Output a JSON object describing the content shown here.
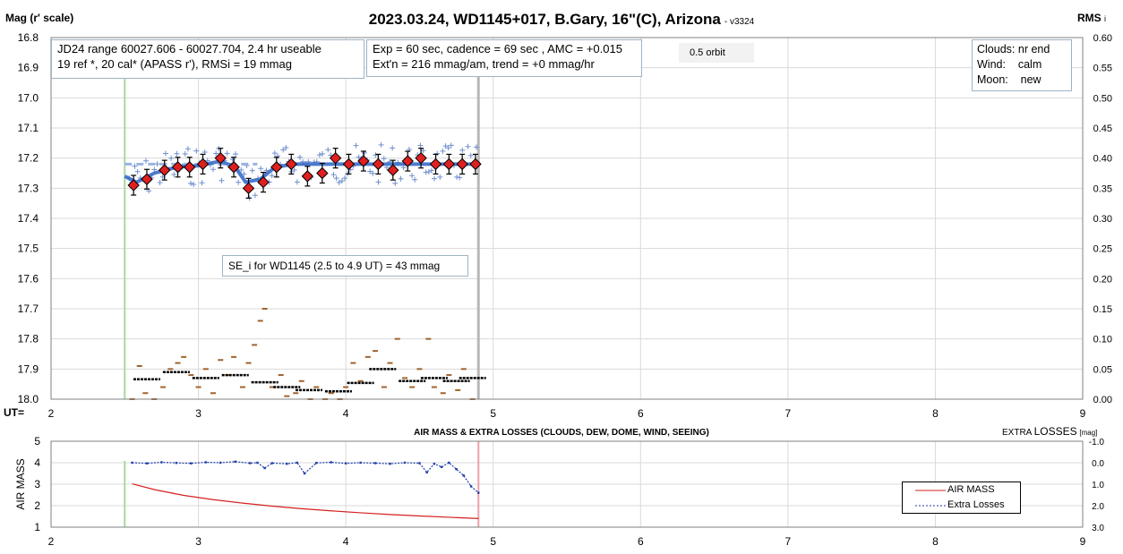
{
  "header": {
    "title": "2023.03.24, WD1145+017, B.Gary, 16\"(C), Arizona",
    "version": "- v3324",
    "left_axis_title": "Mag (r' scale)",
    "right_axis_title": "RMS",
    "right_axis_sub": "i",
    "ut_label": "UT="
  },
  "info": {
    "box1_line1": "JD24 range 60027.606 - 60027.704, 2.4 hr useable",
    "box1_line2": "19 ref *, 20 cal*  (APASS r'), RMSi = 19 mmag",
    "box2_line1": "Exp = 60 sec, cadence = 69 sec , AMC = +0.015",
    "box2_line2": "Ext'n = 216 mmag/am, trend = +0 mmag/hr",
    "orbit_label": "0.5 orbit",
    "se_label": "SE_i for WD1145 (2.5 to 4.9 UT) = 43 mmag",
    "conditions": [
      {
        "label": "Clouds:",
        "value": "nr end"
      },
      {
        "label": "Wind:",
        "value": "calm"
      },
      {
        "label": "Moon:",
        "value": "new"
      }
    ]
  },
  "lower": {
    "title": "AIR MASS & EXTRA LOSSES (CLOUDS, DEW, DOME, WIND, SEEING)",
    "right_title_pre": "EXTRA",
    "right_title_big": "LOSSES",
    "right_title_unit": "[mag]",
    "ylabel": "AIR MASS",
    "legend": {
      "airmass": "AIR MASS",
      "losses": "Extra Losses"
    }
  },
  "colors": {
    "binned_marker": "#e02020",
    "fit_line": "#3a6cc8",
    "raw_points": "#6f8fcf",
    "rms_binned": "#000000",
    "rms_raw": "#a0622d",
    "airmass_line": "#d42020",
    "losses_line": "#1f3fa8",
    "start_marker": "#a8d89a",
    "end_marker": "#b8b8b8",
    "end_marker_lower": "#f0a0a8"
  },
  "chart_data": [
    {
      "type": "scatter",
      "name": "light curve",
      "xlabel": "UT",
      "ylabel": "Mag (r' scale)",
      "xlim": [
        2,
        9
      ],
      "ylim": [
        16.8,
        18.0
      ],
      "y_inverted": true,
      "x_ticks": [
        2,
        3,
        4,
        5,
        6,
        7,
        8,
        9
      ],
      "y_ticks": [
        16.8,
        16.9,
        17.0,
        17.1,
        17.2,
        17.3,
        17.4,
        17.5,
        17.6,
        17.7,
        17.8,
        17.9,
        18.0
      ],
      "y_tick_labels": [
        "16.8",
        "16.9",
        "17.0",
        "17.1",
        "17.2",
        "17.3",
        "17.4",
        "17.5",
        "17.6",
        "17.7",
        "17.8",
        "17.9",
        "18.0"
      ],
      "right_axis": {
        "label": "RMS",
        "range": [
          0.0,
          0.6
        ],
        "ticks": [
          "0.60",
          "0.55",
          "0.50",
          "0.45",
          "0.40",
          "0.35",
          "0.30",
          "0.25",
          "0.20",
          "0.15",
          "0.10",
          "0.05",
          "0.00"
        ]
      },
      "grid": true,
      "vertical_markers": {
        "start_ut": 2.5,
        "end_ut": 4.9
      },
      "binned": {
        "x": [
          2.56,
          2.65,
          2.77,
          2.86,
          2.94,
          3.03,
          3.15,
          3.24,
          3.34,
          3.44,
          3.53,
          3.63,
          3.74,
          3.84,
          3.93,
          4.02,
          4.12,
          4.22,
          4.32,
          4.42,
          4.51,
          4.61,
          4.7,
          4.79,
          4.88
        ],
        "y": [
          17.29,
          17.27,
          17.24,
          17.23,
          17.23,
          17.22,
          17.2,
          17.23,
          17.3,
          17.28,
          17.23,
          17.22,
          17.26,
          17.25,
          17.2,
          17.22,
          17.21,
          17.22,
          17.24,
          17.21,
          17.2,
          17.22,
          17.22,
          17.22,
          17.22
        ]
      },
      "fit_line": {
        "x": [
          2.5,
          2.58,
          2.7,
          2.85,
          3.0,
          3.15,
          3.25,
          3.32,
          3.42,
          3.52,
          3.65,
          3.8,
          4.0,
          4.2,
          4.4,
          4.6,
          4.9
        ],
        "y": [
          17.26,
          17.28,
          17.25,
          17.23,
          17.225,
          17.21,
          17.23,
          17.28,
          17.27,
          17.23,
          17.22,
          17.22,
          17.22,
          17.22,
          17.22,
          17.22,
          17.22
        ]
      },
      "trend_dashed": {
        "x": [
          2.5,
          3.4
        ],
        "y": [
          17.22,
          17.22
        ]
      },
      "rms_binned": {
        "x": [
          2.65,
          2.85,
          3.05,
          3.25,
          3.45,
          3.6,
          3.75,
          3.95,
          4.1,
          4.25,
          4.45,
          4.6,
          4.75,
          4.86
        ],
        "y": [
          0.033,
          0.045,
          0.035,
          0.04,
          0.028,
          0.02,
          0.015,
          0.013,
          0.027,
          0.05,
          0.03,
          0.035,
          0.03,
          0.035
        ]
      },
      "rms_raw": {
        "x": [
          2.55,
          2.6,
          2.64,
          2.7,
          2.76,
          2.81,
          2.86,
          2.9,
          2.95,
          3.0,
          3.05,
          3.1,
          3.15,
          3.2,
          3.24,
          3.3,
          3.34,
          3.38,
          3.42,
          3.45,
          3.5,
          3.56,
          3.6,
          3.66,
          3.7,
          3.76,
          3.8,
          3.86,
          3.9,
          3.96,
          4.0,
          4.05,
          4.1,
          4.15,
          4.2,
          4.26,
          4.3,
          4.35,
          4.4,
          4.45,
          4.5,
          4.56,
          4.6,
          4.66,
          4.7,
          4.76,
          4.8,
          4.86
        ],
        "y": [
          0.0,
          0.055,
          0.01,
          0.0,
          0.02,
          0.05,
          0.06,
          0.07,
          0.04,
          0.02,
          0.05,
          0.01,
          0.065,
          0.04,
          0.07,
          0.02,
          0.06,
          0.09,
          0.13,
          0.15,
          0.02,
          0.04,
          0.005,
          0.01,
          0.03,
          0.0,
          0.02,
          0.0,
          0.01,
          0.0,
          0.02,
          0.06,
          0.03,
          0.07,
          0.08,
          0.02,
          0.06,
          0.1,
          0.035,
          0.02,
          0.05,
          0.1,
          0.02,
          0.01,
          0.04,
          0.015,
          0.05,
          0.0
        ]
      }
    },
    {
      "type": "line",
      "name": "air mass & extra losses",
      "xlim": [
        2,
        9
      ],
      "ylim": [
        1,
        5
      ],
      "x_ticks": [
        2,
        3,
        4,
        5,
        6,
        7,
        8,
        9
      ],
      "y_ticks": [
        1,
        2,
        3,
        4,
        5
      ],
      "right_axis": {
        "label": "EXTRA LOSSES [mag]",
        "ticks": [
          "-1.0",
          "0.0",
          "1.0",
          "2.0",
          "3.0"
        ],
        "inverted": true
      },
      "series": [
        {
          "name": "AIR MASS",
          "x": [
            2.55,
            2.7,
            2.9,
            3.1,
            3.3,
            3.5,
            3.7,
            3.9,
            4.1,
            4.3,
            4.5,
            4.7,
            4.9
          ],
          "y": [
            3.02,
            2.75,
            2.48,
            2.28,
            2.12,
            1.98,
            1.86,
            1.76,
            1.67,
            1.59,
            1.52,
            1.46,
            1.4
          ]
        },
        {
          "name": "Extra Losses",
          "x": [
            2.55,
            2.65,
            2.75,
            2.85,
            2.95,
            3.05,
            3.15,
            3.25,
            3.35,
            3.4,
            3.45,
            3.5,
            3.6,
            3.67,
            3.72,
            3.8,
            3.9,
            4.0,
            4.1,
            4.2,
            4.3,
            4.4,
            4.5,
            4.55,
            4.6,
            4.65,
            4.7,
            4.75,
            4.8,
            4.85,
            4.9
          ],
          "y": [
            0.0,
            0.03,
            -0.02,
            0.01,
            0.03,
            -0.02,
            0.0,
            -0.05,
            0.02,
            0.0,
            0.25,
            0.02,
            0.05,
            0.0,
            0.5,
            0.01,
            -0.02,
            0.03,
            0.0,
            0.02,
            0.05,
            0.0,
            0.02,
            0.45,
            0.05,
            0.2,
            0.0,
            0.3,
            0.6,
            1.1,
            1.4
          ]
        }
      ]
    }
  ]
}
